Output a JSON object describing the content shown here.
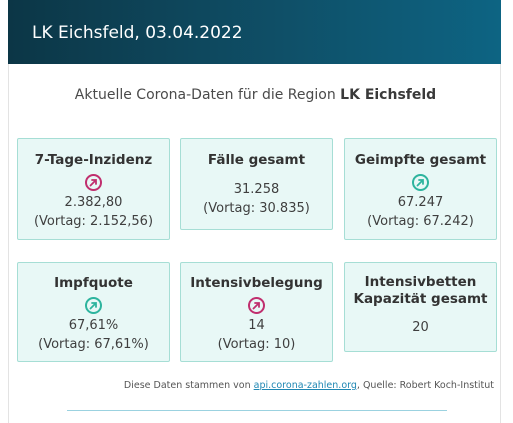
{
  "header": {
    "title": "LK Eichsfeld, 03.04.2022"
  },
  "intro": {
    "prefix": "Aktuelle Corona-Daten für die Region ",
    "region": "LK Eichsfeld"
  },
  "cards": [
    {
      "title": "7-Tage-Inzidenz",
      "trend_icon": "arrow-up-right-icon",
      "trend_color": "#c02f6e",
      "value": "2.382,80",
      "previous": "(Vortag: 2.152,56)"
    },
    {
      "title": "Fälle gesamt",
      "value": "31.258",
      "previous": "(Vortag: 30.835)"
    },
    {
      "title": "Geimpfte gesamt",
      "trend_icon": "arrow-up-right-icon",
      "trend_color": "#2db49e",
      "value": "67.247",
      "previous": "(Vortag: 67.242)"
    },
    {
      "title": "Impfquote",
      "trend_icon": "arrow-up-right-icon",
      "trend_color": "#2db49e",
      "value": "67,61%",
      "previous": "(Vortag: 67,61%)"
    },
    {
      "title": "Intensivbelegung",
      "trend_icon": "arrow-up-right-icon",
      "trend_color": "#c02f6e",
      "value": "14",
      "previous": "(Vortag: 10)"
    },
    {
      "title_line1": "Intensivbetten",
      "title_line2": "Kapazität gesamt",
      "value": "20"
    }
  ],
  "source": {
    "prefix": "Diese Daten stammen von ",
    "link_text": "api.corona-zahlen.org",
    "suffix": ", Quelle: Robert Koch-Institut"
  },
  "colors": {
    "header_dark": "#0c3646",
    "header_light": "#0d6483",
    "card_bg": "#e8f8f6",
    "card_border": "#a6ded5",
    "link": "#1f87b3"
  }
}
